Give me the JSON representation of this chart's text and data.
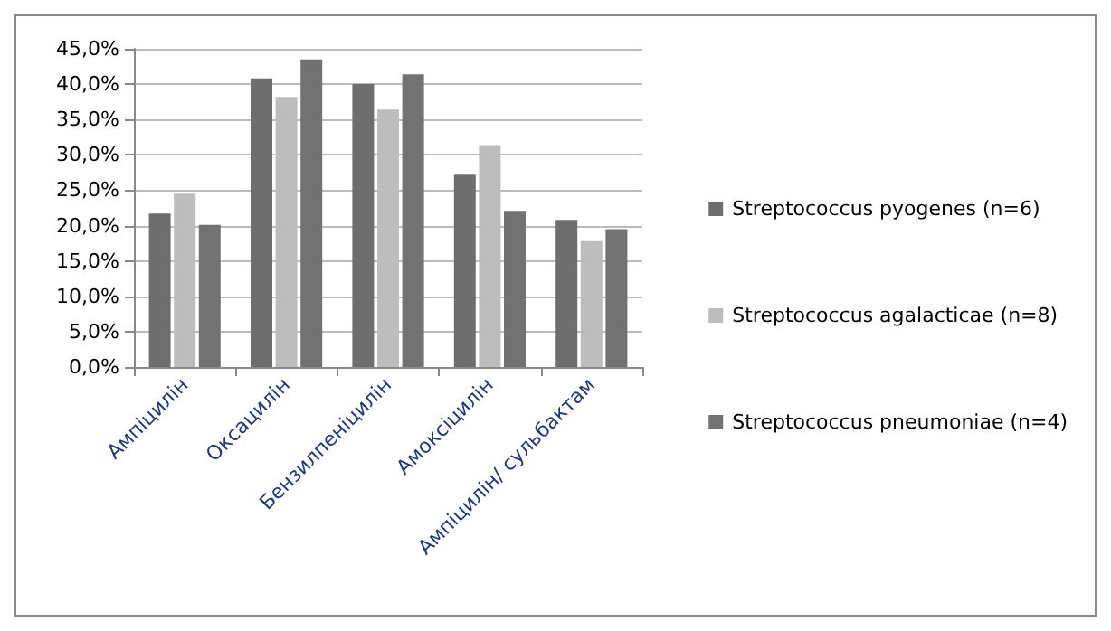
{
  "chart_data": {
    "type": "bar",
    "categories": [
      "Ампіцилін",
      "Оксацилін",
      "Бензилпеніцилін",
      "Амоксіцилін",
      "Ампіцилін/ сульбактам"
    ],
    "series": [
      {
        "name": "Streptococcus pyogenes (n=6)",
        "color": "#6e6e6e",
        "values": [
          21.7,
          40.8,
          40.0,
          27.2,
          20.8
        ]
      },
      {
        "name": "Streptococcus agalacticae (n=8)",
        "color": "#bdbdbd",
        "values": [
          24.5,
          38.2,
          36.4,
          31.4,
          17.8
        ]
      },
      {
        "name": "Streptococcus pneumoniae (n=4)",
        "color": "#727272",
        "values": [
          20.1,
          43.5,
          41.4,
          22.1,
          19.5
        ]
      }
    ],
    "ylim": [
      0,
      45
    ],
    "yticks": [
      {
        "value": 0,
        "label": "0,0%"
      },
      {
        "value": 5,
        "label": "5,0%"
      },
      {
        "value": 10,
        "label": "10,0%"
      },
      {
        "value": 15,
        "label": "15,0%"
      },
      {
        "value": 20,
        "label": "20,0%"
      },
      {
        "value": 25,
        "label": "25,0%"
      },
      {
        "value": 30,
        "label": "30,0%"
      },
      {
        "value": 35,
        "label": "35,0%"
      },
      {
        "value": 40,
        "label": "40,0%"
      },
      {
        "value": 45,
        "label": "45,0%"
      }
    ],
    "grid": "y",
    "legend": "right"
  }
}
